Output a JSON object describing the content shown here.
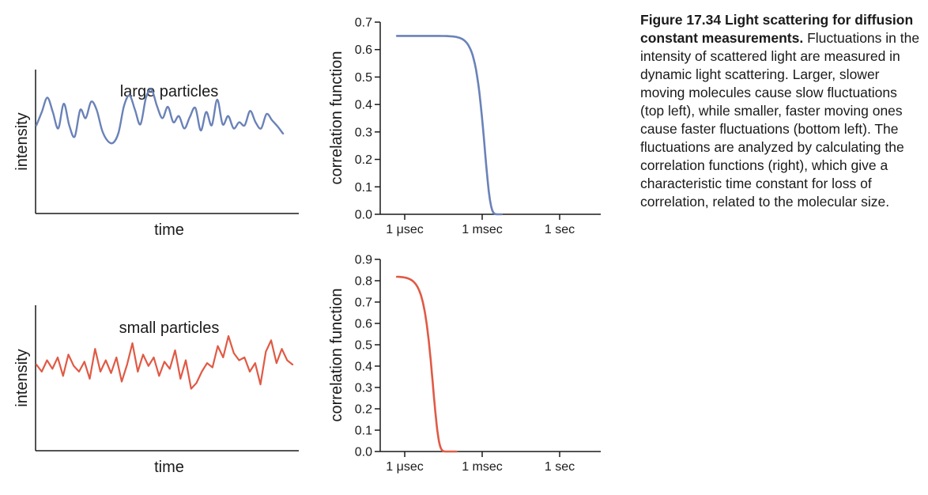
{
  "colors": {
    "large": "#6a82b8",
    "small": "#e05a45",
    "axis": "#1a1a1a"
  },
  "caption": {
    "title": "Figure 17.34 Light scattering for diffusion constant measurements.",
    "body": "Fluctuations in the intensity of scattered light are measured in dynamic light scattering. Larger, slower moving molecules cause slow fluctuations (top left), while smaller, faster moving ones cause faster fluctuations (bottom left). The fluctuations are analyzed by calculating the correlation functions (right), which give a characteristic time constant for loss of correlation, related to the molecular size."
  },
  "chart_data": [
    {
      "type": "line",
      "title": "large particles",
      "xlabel": "time",
      "ylabel": "intensity",
      "ticks": false,
      "series": [
        {
          "values": [
            0.55,
            0.68,
            0.82,
            0.68,
            0.52,
            0.76,
            0.55,
            0.44,
            0.7,
            0.62,
            0.78,
            0.7,
            0.5,
            0.4,
            0.38,
            0.48,
            0.74,
            0.84,
            0.7,
            0.56,
            0.82,
            0.9,
            0.74,
            0.62,
            0.73,
            0.58,
            0.64,
            0.52,
            0.63,
            0.72,
            0.5,
            0.68,
            0.55,
            0.8,
            0.56,
            0.64,
            0.52,
            0.58,
            0.55,
            0.69,
            0.58,
            0.52,
            0.66,
            0.6,
            0.54,
            0.47
          ]
        }
      ]
    },
    {
      "type": "line",
      "title": "small particles",
      "xlabel": "time",
      "ylabel": "intensity",
      "ticks": false,
      "series": [
        {
          "values": [
            0.55,
            0.5,
            0.58,
            0.52,
            0.6,
            0.47,
            0.62,
            0.54,
            0.5,
            0.57,
            0.45,
            0.66,
            0.5,
            0.58,
            0.49,
            0.6,
            0.43,
            0.55,
            0.7,
            0.5,
            0.62,
            0.54,
            0.6,
            0.47,
            0.57,
            0.52,
            0.65,
            0.45,
            0.58,
            0.38,
            0.42,
            0.5,
            0.56,
            0.53,
            0.68,
            0.6,
            0.75,
            0.63,
            0.58,
            0.6,
            0.5,
            0.56,
            0.41,
            0.64,
            0.72,
            0.56,
            0.66,
            0.58,
            0.55
          ]
        }
      ]
    },
    {
      "type": "line",
      "xlabel": "",
      "ylabel": "correlation function",
      "x_scale": "log",
      "x_ticks": [
        "1 μsec",
        "1 msec",
        "1 sec"
      ],
      "ylim": [
        0,
        0.7
      ],
      "y_ticks": [
        "0.0",
        "0.1",
        "0.2",
        "0.3",
        "0.4",
        "0.5",
        "0.6",
        "0.7"
      ],
      "series": [
        {
          "color": "large",
          "plateau": 0.65,
          "decay_center_log10_seconds": -2.9,
          "x_start_log10_seconds": -6.3,
          "x_end_log10_seconds": -2.25
        }
      ]
    },
    {
      "type": "line",
      "xlabel": "",
      "ylabel": "correlation function",
      "x_scale": "log",
      "x_ticks": [
        "1 μsec",
        "1 msec",
        "1 sec"
      ],
      "ylim": [
        0,
        0.9
      ],
      "y_ticks": [
        "0.0",
        "0.1",
        "0.2",
        "0.3",
        "0.4",
        "0.5",
        "0.6",
        "0.7",
        "0.8",
        "0.9"
      ],
      "series": [
        {
          "color": "small",
          "plateau": 0.82,
          "decay_center_log10_seconds": -4.9,
          "x_start_log10_seconds": -6.3,
          "x_end_log10_seconds": -4.0
        }
      ]
    }
  ]
}
